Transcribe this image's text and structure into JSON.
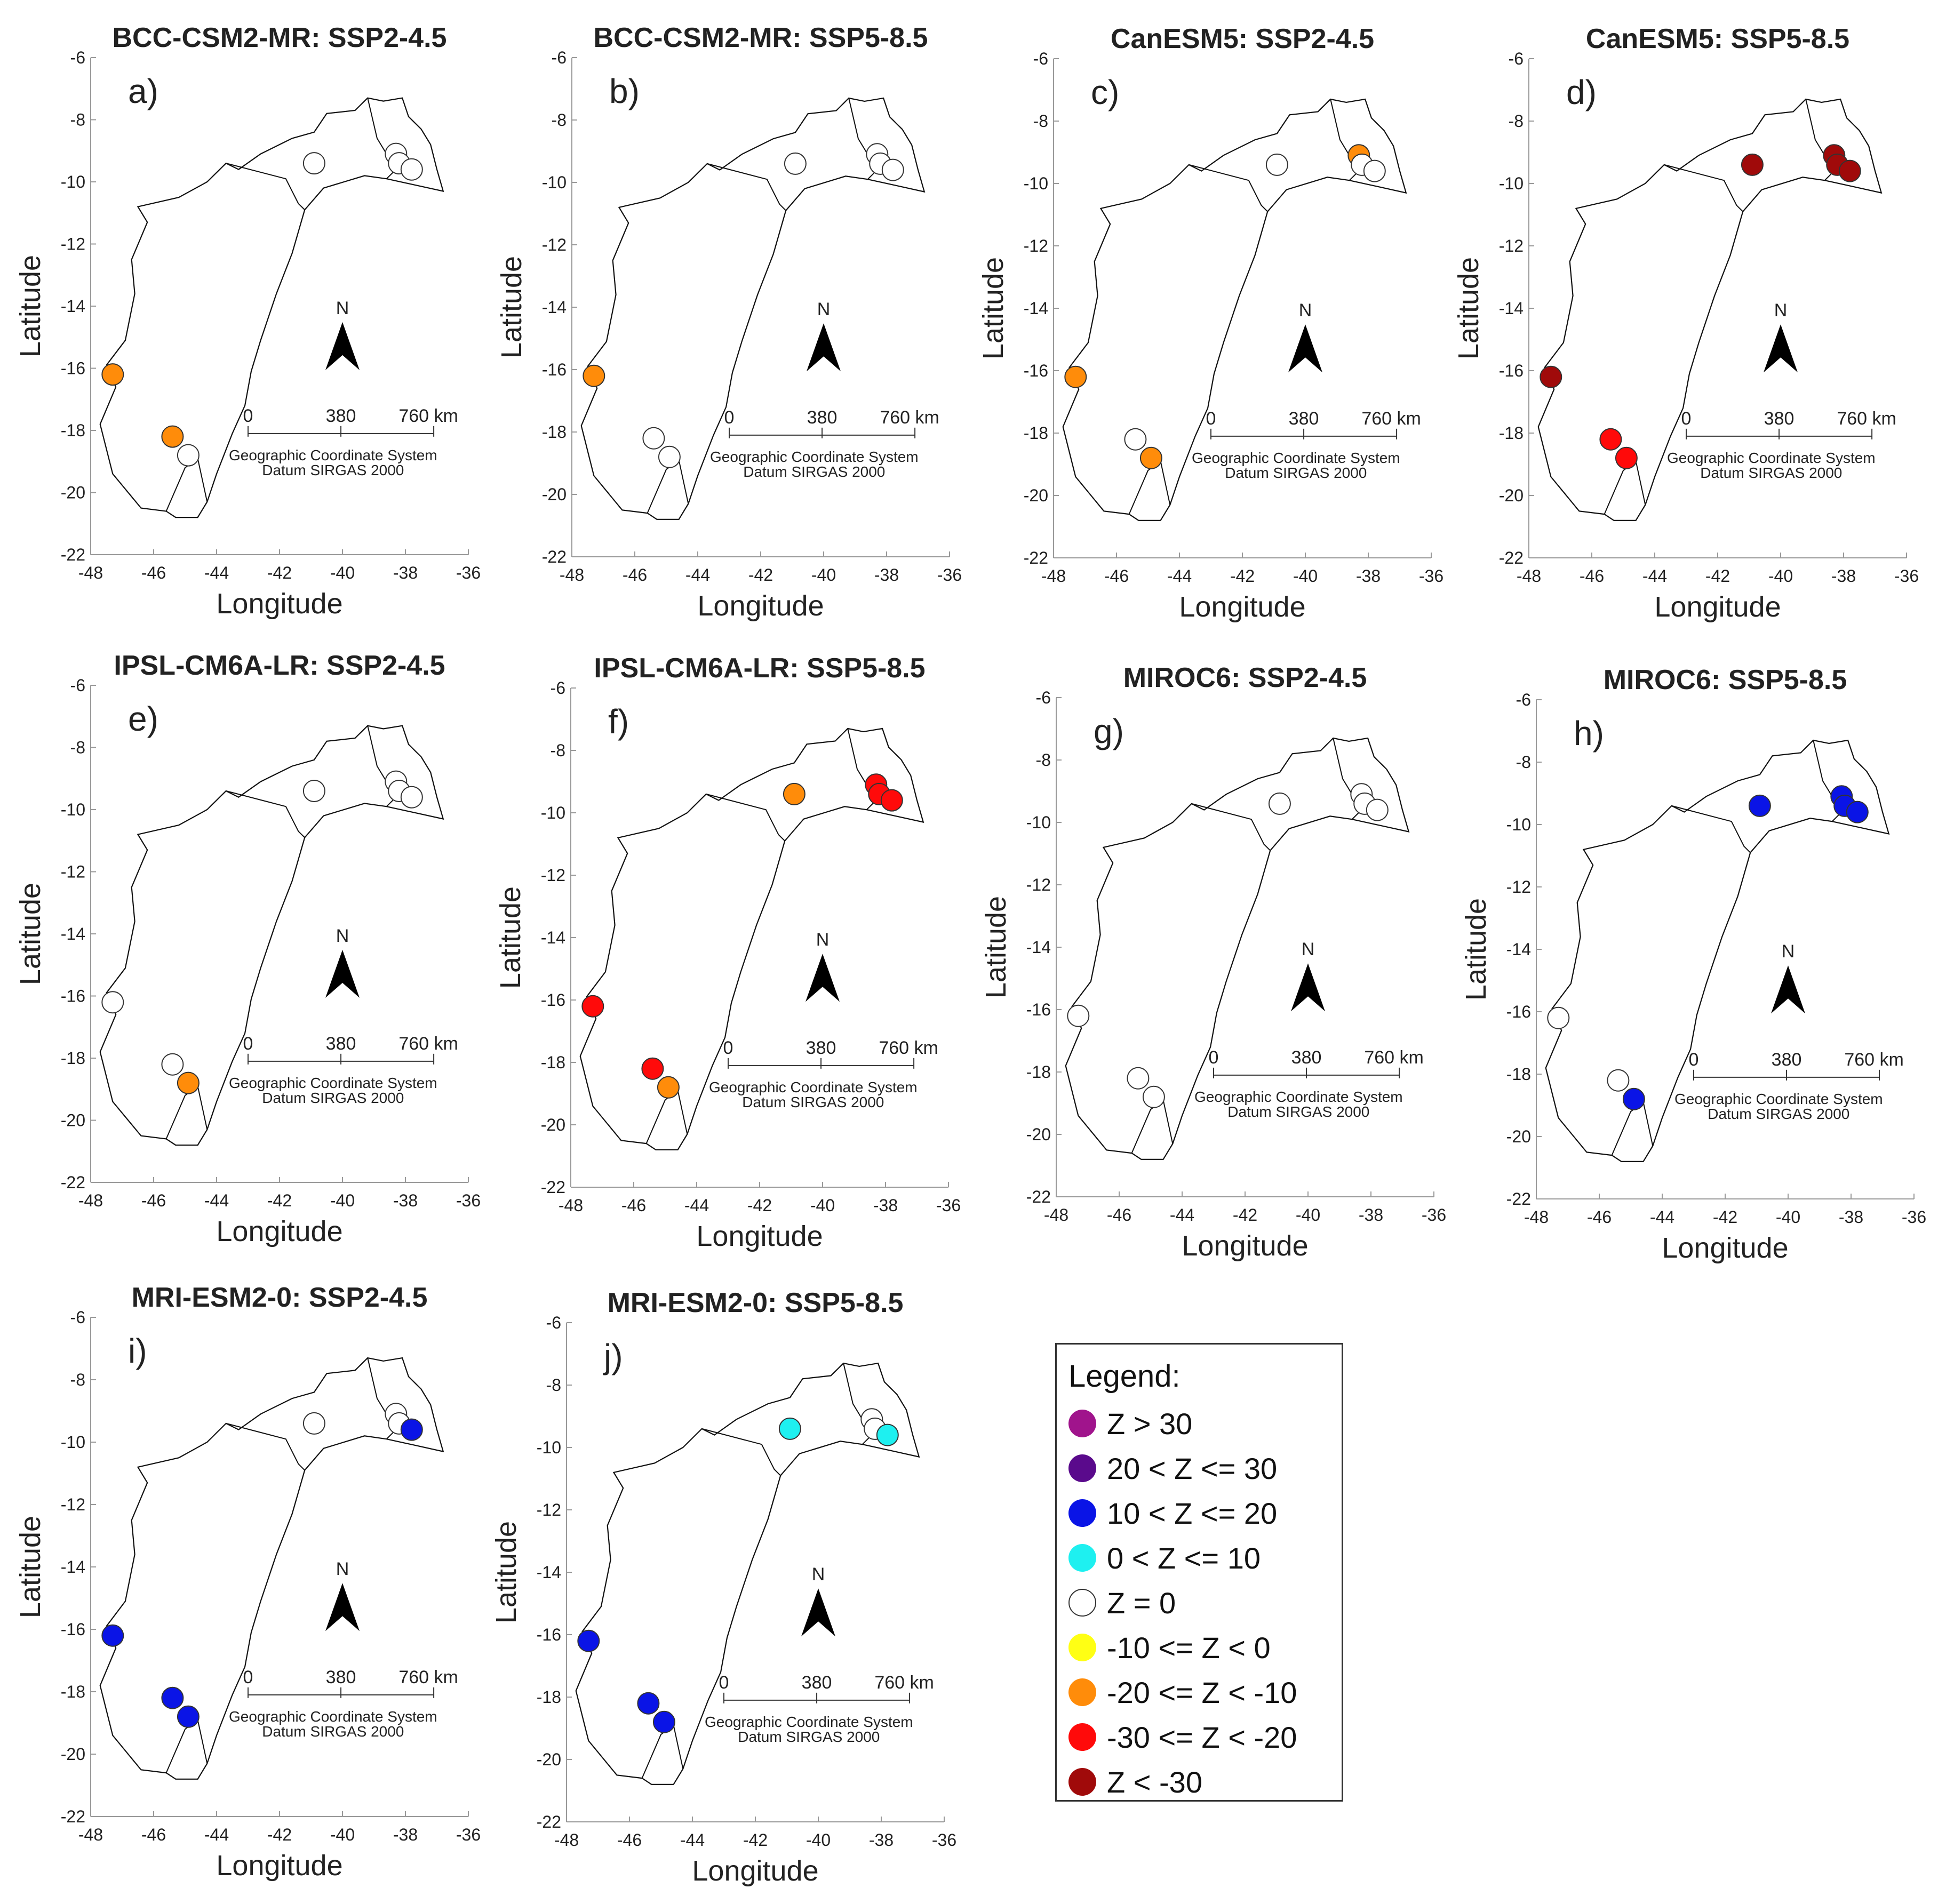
{
  "colors": {
    "Z > 30": "#a0148c",
    "20 < Z <= 30": "#5a0a8c",
    "10 < Z <= 20": "#0a14e6",
    "0 < Z <= 10": "#1ef0f0",
    "Z = 0": "#ffffff",
    "-10 <= Z < 0": "#ffff14",
    "-20 <= Z < -10": "#ff8c0a",
    "-30 <= Z < -20": "#ff0a0a",
    "Z < -30": "#a00a0a"
  },
  "legend": {
    "title": "Legend:",
    "items": [
      {
        "label": "Z > 30",
        "color": "#a0148c"
      },
      {
        "label": "20 < Z <= 30",
        "color": "#5a0a8c"
      },
      {
        "label": "10 < Z <= 20",
        "color": "#0a14e6"
      },
      {
        "label": "0 < Z <= 10",
        "color": "#1ef0f0"
      },
      {
        "label": "Z = 0",
        "color": "#ffffff"
      },
      {
        "label": "-10 <= Z < 0",
        "color": "#ffff14"
      },
      {
        "label": "-20 <= Z < -10",
        "color": "#ff8c0a"
      },
      {
        "label": "-30 <= Z < -20",
        "color": "#ff0a0a"
      },
      {
        "label": "Z < -30",
        "color": "#a00a0a"
      }
    ]
  },
  "map_text": {
    "north": "N",
    "scale_labels": [
      "0",
      "380",
      "760 km"
    ],
    "crs_line1": "Geographic Coordinate System",
    "crs_line2": "Datum SIRGAS 2000"
  },
  "chart_data": [
    {
      "type": "scatter",
      "panel": "a)",
      "title": "BCC-CSM2-MR: SSP2-4.5",
      "xlabel": "Longitude",
      "ylabel": "Latitude",
      "xlim": [
        -48,
        -36
      ],
      "ylim": [
        -22,
        -6
      ],
      "xticks": [
        "-48",
        "-46",
        "-44",
        "-42",
        "-40",
        "-38",
        "-36"
      ],
      "yticks": [
        "-6",
        "-8",
        "-10",
        "-12",
        "-14",
        "-16",
        "-18",
        "-20",
        "-22"
      ],
      "points": [
        {
          "lon": -47.3,
          "lat": -16.2,
          "cls": "-20 <= Z < -10"
        },
        {
          "lon": -45.4,
          "lat": -18.2,
          "cls": "-20 <= Z < -10"
        },
        {
          "lon": -44.9,
          "lat": -18.8,
          "cls": "Z = 0"
        },
        {
          "lon": -40.9,
          "lat": -9.4,
          "cls": "Z = 0"
        },
        {
          "lon": -38.3,
          "lat": -9.1,
          "cls": "Z = 0"
        },
        {
          "lon": -38.2,
          "lat": -9.4,
          "cls": "Z = 0"
        },
        {
          "lon": -37.8,
          "lat": -9.6,
          "cls": "Z = 0"
        }
      ]
    },
    {
      "type": "scatter",
      "panel": "b)",
      "title": "BCC-CSM2-MR: SSP5-8.5",
      "xlabel": "Longitude",
      "ylabel": "Latitude",
      "xlim": [
        -48,
        -36
      ],
      "ylim": [
        -22,
        -6
      ],
      "xticks": [
        "-48",
        "-46",
        "-44",
        "-42",
        "-40",
        "-38",
        "-36"
      ],
      "yticks": [
        "-6",
        "-8",
        "-10",
        "-12",
        "-14",
        "-16",
        "-18",
        "-20",
        "-22"
      ],
      "points": [
        {
          "lon": -47.3,
          "lat": -16.2,
          "cls": "-20 <= Z < -10"
        },
        {
          "lon": -45.4,
          "lat": -18.2,
          "cls": "Z = 0"
        },
        {
          "lon": -44.9,
          "lat": -18.8,
          "cls": "Z = 0"
        },
        {
          "lon": -40.9,
          "lat": -9.4,
          "cls": "Z = 0"
        },
        {
          "lon": -38.3,
          "lat": -9.1,
          "cls": "Z = 0"
        },
        {
          "lon": -38.2,
          "lat": -9.4,
          "cls": "Z = 0"
        },
        {
          "lon": -37.8,
          "lat": -9.6,
          "cls": "Z = 0"
        }
      ]
    },
    {
      "type": "scatter",
      "panel": "c)",
      "title": "CanESM5: SSP2-4.5",
      "xlabel": "Longitude",
      "ylabel": "Latitude",
      "xlim": [
        -48,
        -36
      ],
      "ylim": [
        -22,
        -6
      ],
      "xticks": [
        "-48",
        "-46",
        "-44",
        "-42",
        "-40",
        "-38",
        "-36"
      ],
      "yticks": [
        "-6",
        "-8",
        "-10",
        "-12",
        "-14",
        "-16",
        "-18",
        "-20",
        "-22"
      ],
      "points": [
        {
          "lon": -47.3,
          "lat": -16.2,
          "cls": "-20 <= Z < -10"
        },
        {
          "lon": -45.4,
          "lat": -18.2,
          "cls": "Z = 0"
        },
        {
          "lon": -44.9,
          "lat": -18.8,
          "cls": "-20 <= Z < -10"
        },
        {
          "lon": -40.9,
          "lat": -9.4,
          "cls": "Z = 0"
        },
        {
          "lon": -38.3,
          "lat": -9.1,
          "cls": "-20 <= Z < -10"
        },
        {
          "lon": -38.2,
          "lat": -9.4,
          "cls": "Z = 0"
        },
        {
          "lon": -37.8,
          "lat": -9.6,
          "cls": "Z = 0"
        }
      ]
    },
    {
      "type": "scatter",
      "panel": "d)",
      "title": "CanESM5: SSP5-8.5",
      "xlabel": "Longitude",
      "ylabel": "Latitude",
      "xlim": [
        -48,
        -36
      ],
      "ylim": [
        -22,
        -6
      ],
      "xticks": [
        "-48",
        "-46",
        "-44",
        "-42",
        "-40",
        "-38",
        "-36"
      ],
      "yticks": [
        "-6",
        "-8",
        "-10",
        "-12",
        "-14",
        "-16",
        "-18",
        "-20",
        "-22"
      ],
      "points": [
        {
          "lon": -47.3,
          "lat": -16.2,
          "cls": "Z < -30"
        },
        {
          "lon": -45.4,
          "lat": -18.2,
          "cls": "-30 <= Z < -20"
        },
        {
          "lon": -44.9,
          "lat": -18.8,
          "cls": "-30 <= Z < -20"
        },
        {
          "lon": -40.9,
          "lat": -9.4,
          "cls": "Z < -30"
        },
        {
          "lon": -38.3,
          "lat": -9.1,
          "cls": "Z < -30"
        },
        {
          "lon": -38.2,
          "lat": -9.4,
          "cls": "Z < -30"
        },
        {
          "lon": -37.8,
          "lat": -9.6,
          "cls": "Z < -30"
        }
      ]
    },
    {
      "type": "scatter",
      "panel": "e)",
      "title": "IPSL-CM6A-LR: SSP2-4.5",
      "xlabel": "Longitude",
      "ylabel": "Latitude",
      "xlim": [
        -48,
        -36
      ],
      "ylim": [
        -22,
        -6
      ],
      "xticks": [
        "-48",
        "-46",
        "-44",
        "-42",
        "-40",
        "-38",
        "-36"
      ],
      "yticks": [
        "-6",
        "-8",
        "-10",
        "-12",
        "-14",
        "-16",
        "-18",
        "-20",
        "-22"
      ],
      "points": [
        {
          "lon": -47.3,
          "lat": -16.2,
          "cls": "Z = 0"
        },
        {
          "lon": -45.4,
          "lat": -18.2,
          "cls": "Z = 0"
        },
        {
          "lon": -44.9,
          "lat": -18.8,
          "cls": "-20 <= Z < -10"
        },
        {
          "lon": -40.9,
          "lat": -9.4,
          "cls": "Z = 0"
        },
        {
          "lon": -38.3,
          "lat": -9.1,
          "cls": "Z = 0"
        },
        {
          "lon": -38.2,
          "lat": -9.4,
          "cls": "Z = 0"
        },
        {
          "lon": -37.8,
          "lat": -9.6,
          "cls": "Z = 0"
        }
      ]
    },
    {
      "type": "scatter",
      "panel": "f)",
      "title": "IPSL-CM6A-LR: SSP5-8.5",
      "xlabel": "Longitude",
      "ylabel": "Latitude",
      "xlim": [
        -48,
        -36
      ],
      "ylim": [
        -22,
        -6
      ],
      "xticks": [
        "-48",
        "-46",
        "-44",
        "-42",
        "-40",
        "-38",
        "-36"
      ],
      "yticks": [
        "-6",
        "-8",
        "-10",
        "-12",
        "-14",
        "-16",
        "-18",
        "-20",
        "-22"
      ],
      "points": [
        {
          "lon": -47.3,
          "lat": -16.2,
          "cls": "-30 <= Z < -20"
        },
        {
          "lon": -45.4,
          "lat": -18.2,
          "cls": "-30 <= Z < -20"
        },
        {
          "lon": -44.9,
          "lat": -18.8,
          "cls": "-20 <= Z < -10"
        },
        {
          "lon": -40.9,
          "lat": -9.4,
          "cls": "-20 <= Z < -10"
        },
        {
          "lon": -38.3,
          "lat": -9.1,
          "cls": "-30 <= Z < -20"
        },
        {
          "lon": -38.2,
          "lat": -9.4,
          "cls": "-30 <= Z < -20"
        },
        {
          "lon": -37.8,
          "lat": -9.6,
          "cls": "-30 <= Z < -20"
        }
      ]
    },
    {
      "type": "scatter",
      "panel": "g)",
      "title": "MIROC6: SSP2-4.5",
      "xlabel": "Longitude",
      "ylabel": "Latitude",
      "xlim": [
        -48,
        -36
      ],
      "ylim": [
        -22,
        -6
      ],
      "xticks": [
        "-48",
        "-46",
        "-44",
        "-42",
        "-40",
        "-38",
        "-36"
      ],
      "yticks": [
        "-6",
        "-8",
        "-10",
        "-12",
        "-14",
        "-16",
        "-18",
        "-20",
        "-22"
      ],
      "points": [
        {
          "lon": -47.3,
          "lat": -16.2,
          "cls": "Z = 0"
        },
        {
          "lon": -45.4,
          "lat": -18.2,
          "cls": "Z = 0"
        },
        {
          "lon": -44.9,
          "lat": -18.8,
          "cls": "Z = 0"
        },
        {
          "lon": -40.9,
          "lat": -9.4,
          "cls": "Z = 0"
        },
        {
          "lon": -38.3,
          "lat": -9.1,
          "cls": "Z = 0"
        },
        {
          "lon": -38.2,
          "lat": -9.4,
          "cls": "Z = 0"
        },
        {
          "lon": -37.8,
          "lat": -9.6,
          "cls": "Z = 0"
        }
      ]
    },
    {
      "type": "scatter",
      "panel": "h)",
      "title": "MIROC6: SSP5-8.5",
      "xlabel": "Longitude",
      "ylabel": "Latitude",
      "xlim": [
        -48,
        -36
      ],
      "ylim": [
        -22,
        -6
      ],
      "xticks": [
        "-48",
        "-46",
        "-44",
        "-42",
        "-40",
        "-38",
        "-36"
      ],
      "yticks": [
        "-6",
        "-8",
        "-10",
        "-12",
        "-14",
        "-16",
        "-18",
        "-20",
        "-22"
      ],
      "points": [
        {
          "lon": -47.3,
          "lat": -16.2,
          "cls": "Z = 0"
        },
        {
          "lon": -45.4,
          "lat": -18.2,
          "cls": "Z = 0"
        },
        {
          "lon": -44.9,
          "lat": -18.8,
          "cls": "10 < Z <= 20"
        },
        {
          "lon": -40.9,
          "lat": -9.4,
          "cls": "10 < Z <= 20"
        },
        {
          "lon": -38.3,
          "lat": -9.1,
          "cls": "10 < Z <= 20"
        },
        {
          "lon": -38.2,
          "lat": -9.4,
          "cls": "10 < Z <= 20"
        },
        {
          "lon": -37.8,
          "lat": -9.6,
          "cls": "10 < Z <= 20"
        }
      ]
    },
    {
      "type": "scatter",
      "panel": "i)",
      "title": "MRI-ESM2-0: SSP2-4.5",
      "xlabel": "Longitude",
      "ylabel": "Latitude",
      "xlim": [
        -48,
        -36
      ],
      "ylim": [
        -22,
        -6
      ],
      "xticks": [
        "-48",
        "-46",
        "-44",
        "-42",
        "-40",
        "-38",
        "-36"
      ],
      "yticks": [
        "-6",
        "-8",
        "-10",
        "-12",
        "-14",
        "-16",
        "-18",
        "-20",
        "-22"
      ],
      "points": [
        {
          "lon": -47.3,
          "lat": -16.2,
          "cls": "10 < Z <= 20"
        },
        {
          "lon": -45.4,
          "lat": -18.2,
          "cls": "10 < Z <= 20"
        },
        {
          "lon": -44.9,
          "lat": -18.8,
          "cls": "10 < Z <= 20"
        },
        {
          "lon": -40.9,
          "lat": -9.4,
          "cls": "Z = 0"
        },
        {
          "lon": -38.3,
          "lat": -9.1,
          "cls": "Z = 0"
        },
        {
          "lon": -38.2,
          "lat": -9.4,
          "cls": "Z = 0"
        },
        {
          "lon": -37.8,
          "lat": -9.6,
          "cls": "10 < Z <= 20"
        }
      ]
    },
    {
      "type": "scatter",
      "panel": "j)",
      "title": "MRI-ESM2-0: SSP5-8.5",
      "xlabel": "Longitude",
      "ylabel": "Latitude",
      "xlim": [
        -48,
        -36
      ],
      "ylim": [
        -22,
        -6
      ],
      "xticks": [
        "-48",
        "-46",
        "-44",
        "-42",
        "-40",
        "-38",
        "-36"
      ],
      "yticks": [
        "-6",
        "-8",
        "-10",
        "-12",
        "-14",
        "-16",
        "-18",
        "-20",
        "-22"
      ],
      "points": [
        {
          "lon": -47.3,
          "lat": -16.2,
          "cls": "10 < Z <= 20"
        },
        {
          "lon": -45.4,
          "lat": -18.2,
          "cls": "10 < Z <= 20"
        },
        {
          "lon": -44.9,
          "lat": -18.8,
          "cls": "10 < Z <= 20"
        },
        {
          "lon": -40.9,
          "lat": -9.4,
          "cls": "0 < Z <= 10"
        },
        {
          "lon": -38.3,
          "lat": -9.1,
          "cls": "Z = 0"
        },
        {
          "lon": -38.2,
          "lat": -9.4,
          "cls": "Z = 0"
        },
        {
          "lon": -37.8,
          "lat": -9.6,
          "cls": "0 < Z <= 10"
        }
      ]
    }
  ]
}
